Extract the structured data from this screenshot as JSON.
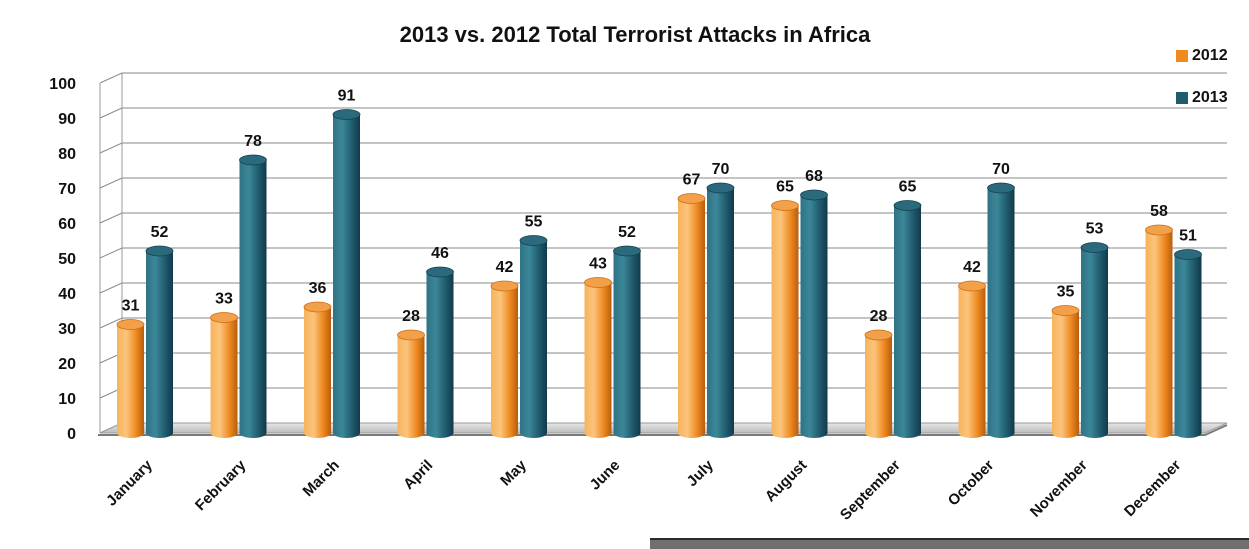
{
  "chart_data": {
    "type": "bar",
    "title": "2013 vs. 2012 Total Terrorist Attacks  in Africa",
    "categories": [
      "January",
      "February",
      "March",
      "April",
      "May",
      "June",
      "July",
      "August",
      "September",
      "October",
      "November",
      "December"
    ],
    "series": [
      {
        "name": "2012",
        "color": "#f08a1e",
        "values": [
          31,
          33,
          36,
          28,
          42,
          43,
          67,
          65,
          28,
          42,
          35,
          58
        ]
      },
      {
        "name": "2013",
        "color": "#1f5c6e",
        "values": [
          52,
          78,
          91,
          46,
          55,
          52,
          70,
          68,
          65,
          70,
          53,
          51
        ]
      }
    ],
    "ylim": [
      0,
      100
    ],
    "yticks": [
      "0",
      "10",
      "20",
      "30",
      "40",
      "50",
      "60",
      "70",
      "80",
      "90",
      "100"
    ],
    "grid": true,
    "legend_position": "top-right",
    "data_labels": true
  }
}
